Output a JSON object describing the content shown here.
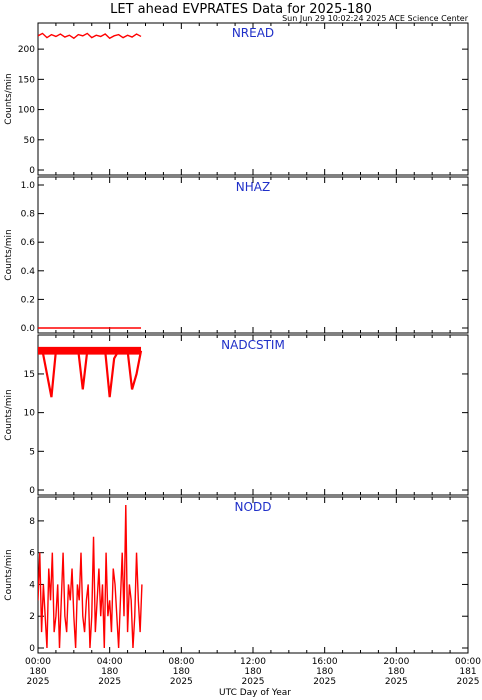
{
  "title": "LET ahead EVPRATES Data for 2025-180",
  "timestamp": "Sun Jun 29 10:02:24 2025 ACE Science Center",
  "xlabel": "UTC Day of Year",
  "x_ticks": [
    {
      "time": "00:00",
      "day": "180",
      "year": "2025"
    },
    {
      "time": "04:00",
      "day": "180",
      "year": "2025"
    },
    {
      "time": "08:00",
      "day": "180",
      "year": "2025"
    },
    {
      "time": "12:00",
      "day": "180",
      "year": "2025"
    },
    {
      "time": "16:00",
      "day": "180",
      "year": "2025"
    },
    {
      "time": "20:00",
      "day": "180",
      "year": "2025"
    },
    {
      "time": "00:00",
      "day": "181",
      "year": "2025"
    }
  ],
  "colors": {
    "series": "#ff0000",
    "panel_label": "#1f2fc8"
  },
  "chart_data": [
    {
      "type": "line",
      "title": "NREAD",
      "ylabel": "Counts/min",
      "xlim": [
        0,
        24
      ],
      "ylim": [
        0,
        230
      ],
      "yticks": [
        0,
        50,
        100,
        150,
        200
      ],
      "x_hours": [
        0.0,
        0.25,
        0.5,
        0.75,
        1.0,
        1.25,
        1.5,
        1.75,
        2.0,
        2.25,
        2.5,
        2.75,
        3.0,
        3.25,
        3.5,
        3.75,
        4.0,
        4.25,
        4.5,
        4.75,
        5.0,
        5.25,
        5.5,
        5.75
      ],
      "values": [
        222,
        226,
        219,
        224,
        221,
        225,
        220,
        223,
        218,
        224,
        222,
        226,
        219,
        223,
        221,
        225,
        218,
        222,
        224,
        219,
        223,
        220,
        225,
        221
      ]
    },
    {
      "type": "line",
      "title": "NHAZ",
      "ylabel": "Counts/min",
      "xlim": [
        0,
        24
      ],
      "ylim": [
        0,
        1
      ],
      "yticks": [
        0.0,
        0.2,
        0.4,
        0.6,
        0.8,
        1.0
      ],
      "x_hours": [
        0.0,
        1.0,
        2.0,
        3.0,
        4.0,
        5.0,
        5.75
      ],
      "values": [
        0,
        0,
        0,
        0,
        0,
        0,
        0
      ]
    },
    {
      "type": "line",
      "title": "NADCSTIM",
      "ylabel": "Counts/min",
      "xlim": [
        0,
        24
      ],
      "ylim": [
        0,
        19
      ],
      "yticks": [
        0,
        5,
        10,
        15
      ],
      "x_hours": [
        0.0,
        0.25,
        0.5,
        0.75,
        1.0,
        1.25,
        1.5,
        1.75,
        2.0,
        2.25,
        2.5,
        2.75,
        3.0,
        3.25,
        3.5,
        3.75,
        4.0,
        4.25,
        4.5,
        4.75,
        5.0,
        5.25,
        5.5,
        5.75
      ],
      "values": [
        18,
        18,
        15,
        12,
        18,
        18,
        18,
        18,
        18,
        18,
        13,
        18,
        18,
        18,
        18,
        18,
        12,
        17,
        18,
        18,
        18,
        13,
        15,
        18
      ]
    },
    {
      "type": "line",
      "title": "NODD",
      "ylabel": "Counts/min",
      "xlim": [
        0,
        24
      ],
      "ylim": [
        0,
        9
      ],
      "yticks": [
        0,
        2,
        4,
        6,
        8
      ],
      "x_hours": [
        0.0,
        0.1,
        0.2,
        0.3,
        0.4,
        0.5,
        0.6,
        0.7,
        0.8,
        0.9,
        1.0,
        1.1,
        1.2,
        1.3,
        1.4,
        1.5,
        1.6,
        1.7,
        1.8,
        1.9,
        2.0,
        2.1,
        2.2,
        2.3,
        2.4,
        2.5,
        2.6,
        2.7,
        2.8,
        2.9,
        3.0,
        3.1,
        3.2,
        3.3,
        3.4,
        3.5,
        3.6,
        3.7,
        3.8,
        3.9,
        4.0,
        4.1,
        4.2,
        4.3,
        4.4,
        4.5,
        4.6,
        4.7,
        4.8,
        4.9,
        5.0,
        5.1,
        5.2,
        5.3,
        5.4,
        5.5,
        5.6,
        5.7,
        5.8
      ],
      "values": [
        3,
        6,
        1,
        4,
        2,
        0,
        5,
        3,
        6,
        1,
        2,
        4,
        0,
        3,
        6,
        2,
        1,
        4,
        3,
        5,
        2,
        0,
        4,
        3,
        6,
        2,
        1,
        3,
        4,
        0,
        2,
        7,
        1,
        3,
        5,
        2,
        4,
        0,
        6,
        2,
        3,
        1,
        5,
        4,
        2,
        0,
        3,
        6,
        2,
        9,
        1,
        4,
        3,
        0,
        2,
        6,
        3,
        1,
        4
      ]
    }
  ]
}
